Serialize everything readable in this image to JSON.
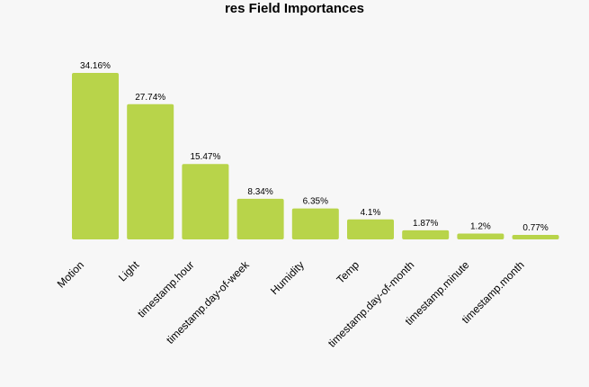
{
  "chart_data": {
    "type": "bar",
    "title": "res Field Importances",
    "xlabel": "",
    "ylabel": "",
    "categories": [
      "Motion",
      "Light",
      "timestamp.hour",
      "timestamp.day-of-week",
      "Humidity",
      "Temp",
      "timestamp.day-of-month",
      "timestamp.minute",
      "timestamp.month"
    ],
    "values": [
      34.16,
      27.74,
      15.47,
      8.34,
      6.35,
      4.1,
      1.87,
      1.2,
      0.77
    ],
    "value_labels": [
      "34.16%",
      "27.74%",
      "15.47%",
      "8.34%",
      "6.35%",
      "4.1%",
      "1.87%",
      "1.2%",
      "0.77%"
    ],
    "ylim": [
      0,
      34.16
    ],
    "grid": false,
    "legend": "none",
    "bar_color": "#b8d44a"
  }
}
